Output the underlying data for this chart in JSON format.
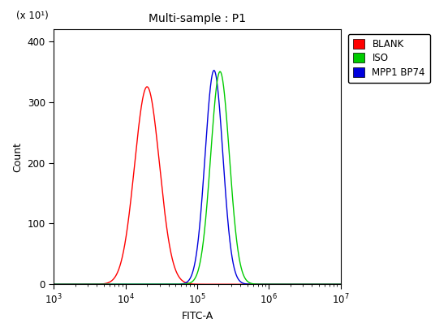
{
  "title": "Multi-sample : P1",
  "xlabel": "FITC-A",
  "ylabel": "Count",
  "ylabel_multiplier": "(x 10¹)",
  "xlim": [
    1000.0,
    10000000.0
  ],
  "ylim": [
    0,
    420
  ],
  "yticks": [
    0,
    100,
    200,
    300,
    400
  ],
  "background_color": "#ffffff",
  "plot_bg_color": "#ffffff",
  "series": [
    {
      "label": "BLANK",
      "color": "#ff0000",
      "peak_log10": 4.28,
      "peak_height": 325,
      "sigma_log10": 0.175,
      "skew": 0.25
    },
    {
      "label": "ISO",
      "color": "#00cc00",
      "peak_log10": 5.285,
      "peak_height": 350,
      "sigma_log10": 0.135,
      "skew": 0.55
    },
    {
      "label": "MPP1 BP74",
      "color": "#0000dd",
      "peak_log10": 5.22,
      "peak_height": 352,
      "sigma_log10": 0.125,
      "skew": 0.25
    }
  ],
  "draw_order": [
    0,
    2,
    1
  ],
  "title_fontsize": 10,
  "label_fontsize": 9,
  "tick_fontsize": 8.5
}
